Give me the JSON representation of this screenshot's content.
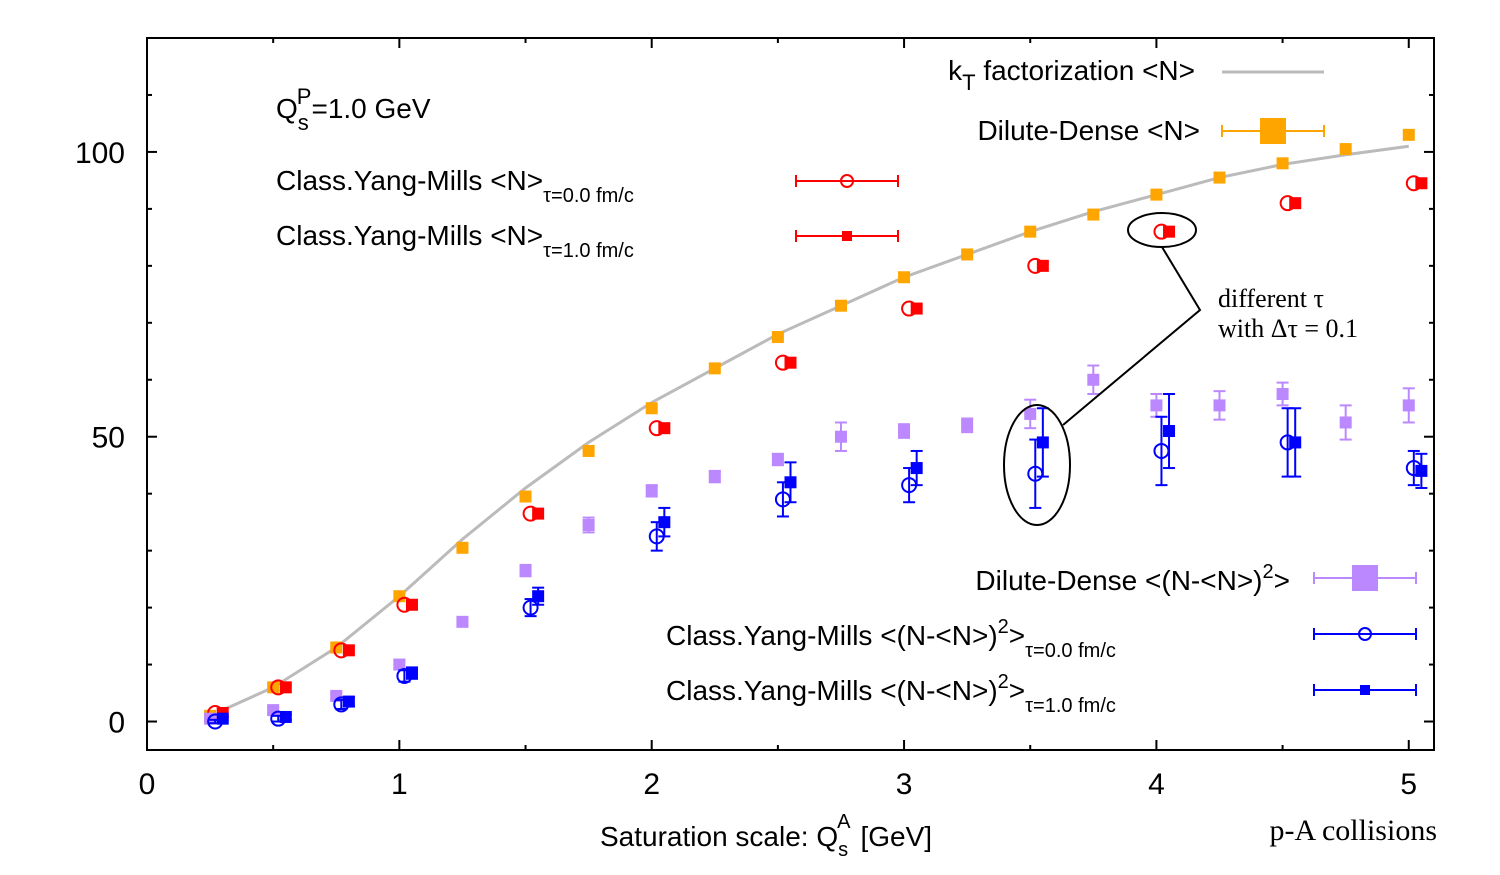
{
  "chart_data": {
    "type": "scatter",
    "xlabel_text": "Saturation scale: Q",
    "xlabel_sub": "s",
    "xlabel_sup": "A",
    "xlabel_unit": "[GeV]",
    "corner_label": "p-A collisions",
    "param_label_main": "Q",
    "param_label_sub": "s",
    "param_label_sup": "P",
    "param_label_value": "=1.0 GeV",
    "annotation_line1": "different τ",
    "annotation_line2": "with Δτ = 0.1",
    "xlim": [
      0,
      5.1
    ],
    "ylim": [
      -5,
      120
    ],
    "xticks": [
      0,
      1,
      2,
      3,
      4,
      5
    ],
    "yticks": [
      0,
      50,
      100
    ],
    "grid": false,
    "legend_top": [
      {
        "id": "kt",
        "main": "k",
        "sub": "T",
        "rest": " factorization  <N>",
        "color": "#bbbbbb"
      },
      {
        "id": "dd",
        "main": "Dilute-Dense <N>",
        "color": "#ffa500"
      },
      {
        "id": "cym0",
        "main": "Class.Yang-Mills <N>",
        "sub": "τ=0.0 fm/c",
        "color": "#ff0000"
      },
      {
        "id": "cym1",
        "main": "Class.Yang-Mills <N>",
        "sub": "τ=1.0 fm/c",
        "color": "#ff0000"
      }
    ],
    "legend_bottom": [
      {
        "id": "ddv",
        "main": "Dilute-Dense <(N-<N>)",
        "sup": "2",
        "rest": ">",
        "color": "#bb88ff"
      },
      {
        "id": "cymv0",
        "main": "Class.Yang-Mills <(N-<N>)",
        "sup": "2",
        "rest": ">",
        "sub": "τ=0.0 fm/c",
        "color": "#0000ff"
      },
      {
        "id": "cymv1",
        "main": "Class.Yang-Mills <(N-<N>)",
        "sup": "2",
        "rest": ">",
        "sub": "τ=1.0 fm/c",
        "color": "#0000ff"
      }
    ],
    "series": [
      {
        "name": "k_T factorization <N>",
        "kind": "line",
        "color": "#bbbbbb",
        "x": [
          0.3,
          0.5,
          0.75,
          1.0,
          1.25,
          1.5,
          1.75,
          2.0,
          2.25,
          2.5,
          2.75,
          3.0,
          3.25,
          3.5,
          3.75,
          4.0,
          4.25,
          4.5,
          4.75,
          5.0
        ],
        "y": [
          2,
          6,
          13,
          22,
          32,
          41,
          49,
          56,
          62,
          68,
          73,
          78,
          82,
          86,
          89.5,
          92.5,
          95.5,
          97.8,
          99.5,
          101
        ]
      },
      {
        "name": "Dilute-Dense <N>",
        "kind": "square",
        "color": "#ffa500",
        "x": [
          0.25,
          0.5,
          0.75,
          1.0,
          1.25,
          1.5,
          1.75,
          2.0,
          2.25,
          2.5,
          2.75,
          3.0,
          3.25,
          3.5,
          3.75,
          4.0,
          4.25,
          4.5,
          4.75,
          5.0
        ],
        "y": [
          1,
          6,
          13,
          22,
          30.5,
          39.5,
          47.5,
          55,
          62,
          67.5,
          73,
          78,
          82,
          86,
          89,
          92.5,
          95.5,
          98,
          100.5,
          103
        ]
      },
      {
        "name": "Class.Yang-Mills <N> τ=0.0 fm/c",
        "kind": "circle",
        "color": "#ff0000",
        "x": [
          0.27,
          0.52,
          0.77,
          1.02,
          1.52,
          2.02,
          2.52,
          3.02,
          3.52,
          4.02,
          4.52,
          5.02
        ],
        "y": [
          1.5,
          6,
          12.5,
          20.5,
          36.5,
          51.5,
          63,
          72.5,
          80,
          86,
          91,
          94.5
        ]
      },
      {
        "name": "Class.Yang-Mills <N> τ=1.0 fm/c",
        "kind": "filled_square",
        "color": "#ff0000",
        "x": [
          0.3,
          0.55,
          0.8,
          1.05,
          1.55,
          2.05,
          2.55,
          3.05,
          3.55,
          4.05,
          4.55,
          5.05
        ],
        "y": [
          1.5,
          6,
          12.5,
          20.5,
          36.5,
          51.5,
          63,
          72.5,
          80,
          86,
          91,
          94.5
        ]
      },
      {
        "name": "Dilute-Dense <(N-<N>)^2>",
        "kind": "square",
        "color": "#bb88ff",
        "x": [
          0.25,
          0.5,
          0.75,
          1.0,
          1.25,
          1.5,
          1.75,
          2.0,
          2.25,
          2.5,
          2.75,
          3.0,
          3.25,
          3.5,
          3.75,
          4.0,
          4.25,
          4.5,
          4.75,
          5.0
        ],
        "y": [
          0.5,
          2,
          4.5,
          10,
          17.5,
          26.5,
          34.5,
          40.5,
          43,
          46,
          50,
          51,
          52,
          54,
          60,
          55.5,
          55.5,
          57.5,
          52.5,
          55.5
        ],
        "err": [
          0.3,
          0.5,
          0.5,
          0.8,
          0.8,
          1,
          1.3,
          1,
          1,
          1,
          2.5,
          1.2,
          1.2,
          2.5,
          2.5,
          2,
          2.5,
          2,
          3,
          3
        ]
      },
      {
        "name": "Class.Yang-Mills <(N-<N>)^2> τ=0.0 fm/c",
        "kind": "circle",
        "color": "#0000ff",
        "x": [
          0.27,
          0.52,
          0.77,
          1.02,
          1.52,
          2.02,
          2.52,
          3.02,
          3.52,
          4.02,
          4.52,
          5.02
        ],
        "y": [
          0,
          0.5,
          3,
          8,
          20,
          32.5,
          39,
          41.5,
          43.5,
          47.5,
          49,
          44.5
        ],
        "err": [
          0.3,
          0.5,
          0.8,
          1,
          1.5,
          2.5,
          3,
          3,
          6,
          6,
          6,
          3
        ]
      },
      {
        "name": "Class.Yang-Mills <(N-<N>)^2> τ=1.0 fm/c",
        "kind": "filled_square",
        "color": "#0000ff",
        "x": [
          0.3,
          0.55,
          0.8,
          1.05,
          1.55,
          2.05,
          2.55,
          3.05,
          3.55,
          4.05,
          4.55,
          5.05
        ],
        "y": [
          0.5,
          0.8,
          3.5,
          8.5,
          22,
          35,
          42,
          44.5,
          49,
          51,
          49,
          44
        ],
        "err": [
          0.3,
          0.5,
          0.8,
          1,
          1.5,
          2.5,
          3.5,
          3,
          6,
          6.5,
          6,
          3
        ]
      }
    ]
  }
}
